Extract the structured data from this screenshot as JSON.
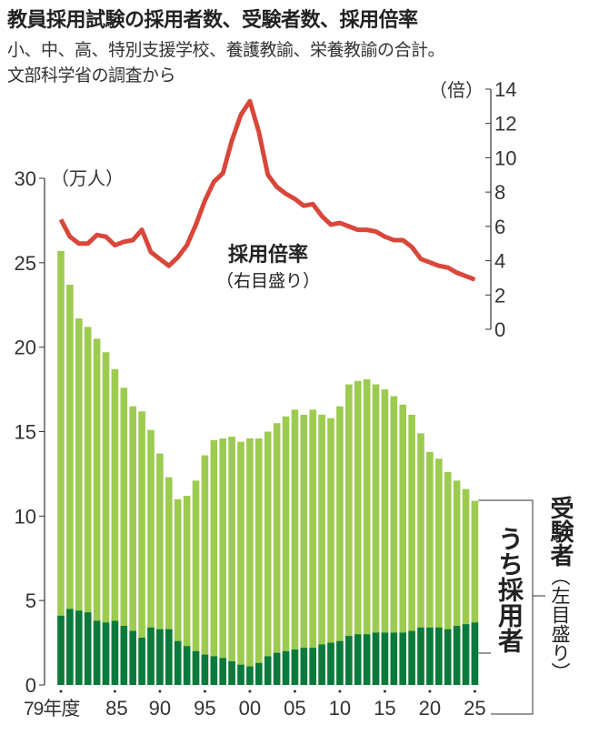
{
  "title": "教員採用試験の採用者数、受験者数、採用倍率",
  "subtitle_lines": [
    "小、中、高、特別支援学校、養護教諭、栄養教諭の合計。",
    "文部科学省の調査から"
  ],
  "chart_data": {
    "type": "bar+line",
    "title": "教員採用試験の採用者数、受験者数、採用倍率",
    "x": [
      1979,
      1980,
      1981,
      1982,
      1983,
      1984,
      1985,
      1986,
      1987,
      1988,
      1989,
      1990,
      1991,
      1992,
      1993,
      1994,
      1995,
      1996,
      1997,
      1998,
      1999,
      2000,
      2001,
      2002,
      2003,
      2004,
      2005,
      2006,
      2007,
      2008,
      2009,
      2010,
      2011,
      2012,
      2013,
      2014,
      2015,
      2016,
      2017,
      2018,
      2019,
      2020,
      2021,
      2022,
      2023,
      2024,
      2025
    ],
    "x_tick_labels": [
      "79年度",
      "85",
      "90",
      "95",
      "00",
      "05",
      "10",
      "15",
      "20",
      "25"
    ],
    "x_tick_years": [
      1979,
      1985,
      1990,
      1995,
      2000,
      2005,
      2010,
      2015,
      2020,
      2025
    ],
    "left_axis": {
      "unit_label": "（万人）",
      "ylim": [
        0,
        30
      ],
      "ticks": [
        "0",
        "5",
        "10",
        "15",
        "20",
        "25",
        "30"
      ]
    },
    "right_axis": {
      "unit_label": "（倍）",
      "ylim": [
        0,
        14
      ],
      "ticks": [
        "0",
        "2",
        "4",
        "6",
        "8",
        "10",
        "12",
        "14"
      ]
    },
    "series": [
      {
        "name": "受験者",
        "axis_note": "（左目盛り）",
        "type": "bar",
        "color": "#9dcb50",
        "values": [
          25.7,
          23.7,
          21.7,
          21.2,
          20.5,
          19.7,
          18.7,
          17.6,
          16.5,
          16.2,
          15.1,
          13.7,
          12.3,
          11.0,
          11.2,
          12.1,
          13.6,
          14.5,
          14.6,
          14.7,
          14.4,
          14.6,
          14.6,
          15.0,
          15.5,
          15.9,
          16.3,
          16.0,
          16.3,
          16.0,
          15.8,
          16.5,
          17.8,
          18.0,
          18.1,
          17.8,
          17.5,
          17.1,
          16.6,
          16.0,
          14.9,
          13.8,
          13.4,
          12.6,
          12.1,
          11.6,
          10.9
        ]
      },
      {
        "name": "うち採用者",
        "type": "bar",
        "color": "#0a7a3c",
        "values": [
          4.1,
          4.5,
          4.4,
          4.3,
          3.8,
          3.7,
          3.8,
          3.5,
          3.2,
          2.8,
          3.4,
          3.3,
          3.3,
          2.6,
          2.3,
          2.0,
          1.8,
          1.7,
          1.6,
          1.4,
          1.2,
          1.1,
          1.3,
          1.7,
          1.9,
          2.0,
          2.1,
          2.2,
          2.2,
          2.4,
          2.5,
          2.6,
          2.9,
          3.0,
          3.0,
          3.1,
          3.1,
          3.1,
          3.1,
          3.2,
          3.4,
          3.4,
          3.4,
          3.3,
          3.5,
          3.6,
          3.7
        ]
      },
      {
        "name": "採用倍率",
        "axis_note": "（右目盛り）",
        "type": "line",
        "color": "#d8473a",
        "values": [
          6.4,
          5.4,
          5.0,
          5.0,
          5.5,
          5.4,
          4.9,
          5.1,
          5.2,
          5.8,
          4.5,
          4.1,
          3.7,
          4.2,
          4.9,
          6.1,
          7.5,
          8.6,
          9.1,
          11.0,
          12.5,
          13.3,
          11.5,
          9.0,
          8.3,
          7.9,
          7.6,
          7.2,
          7.3,
          6.6,
          6.1,
          6.2,
          6.0,
          5.8,
          5.8,
          5.7,
          5.4,
          5.2,
          5.2,
          4.8,
          4.1,
          3.9,
          3.7,
          3.6,
          3.3,
          3.1,
          2.9
        ]
      }
    ],
    "grid": false
  }
}
